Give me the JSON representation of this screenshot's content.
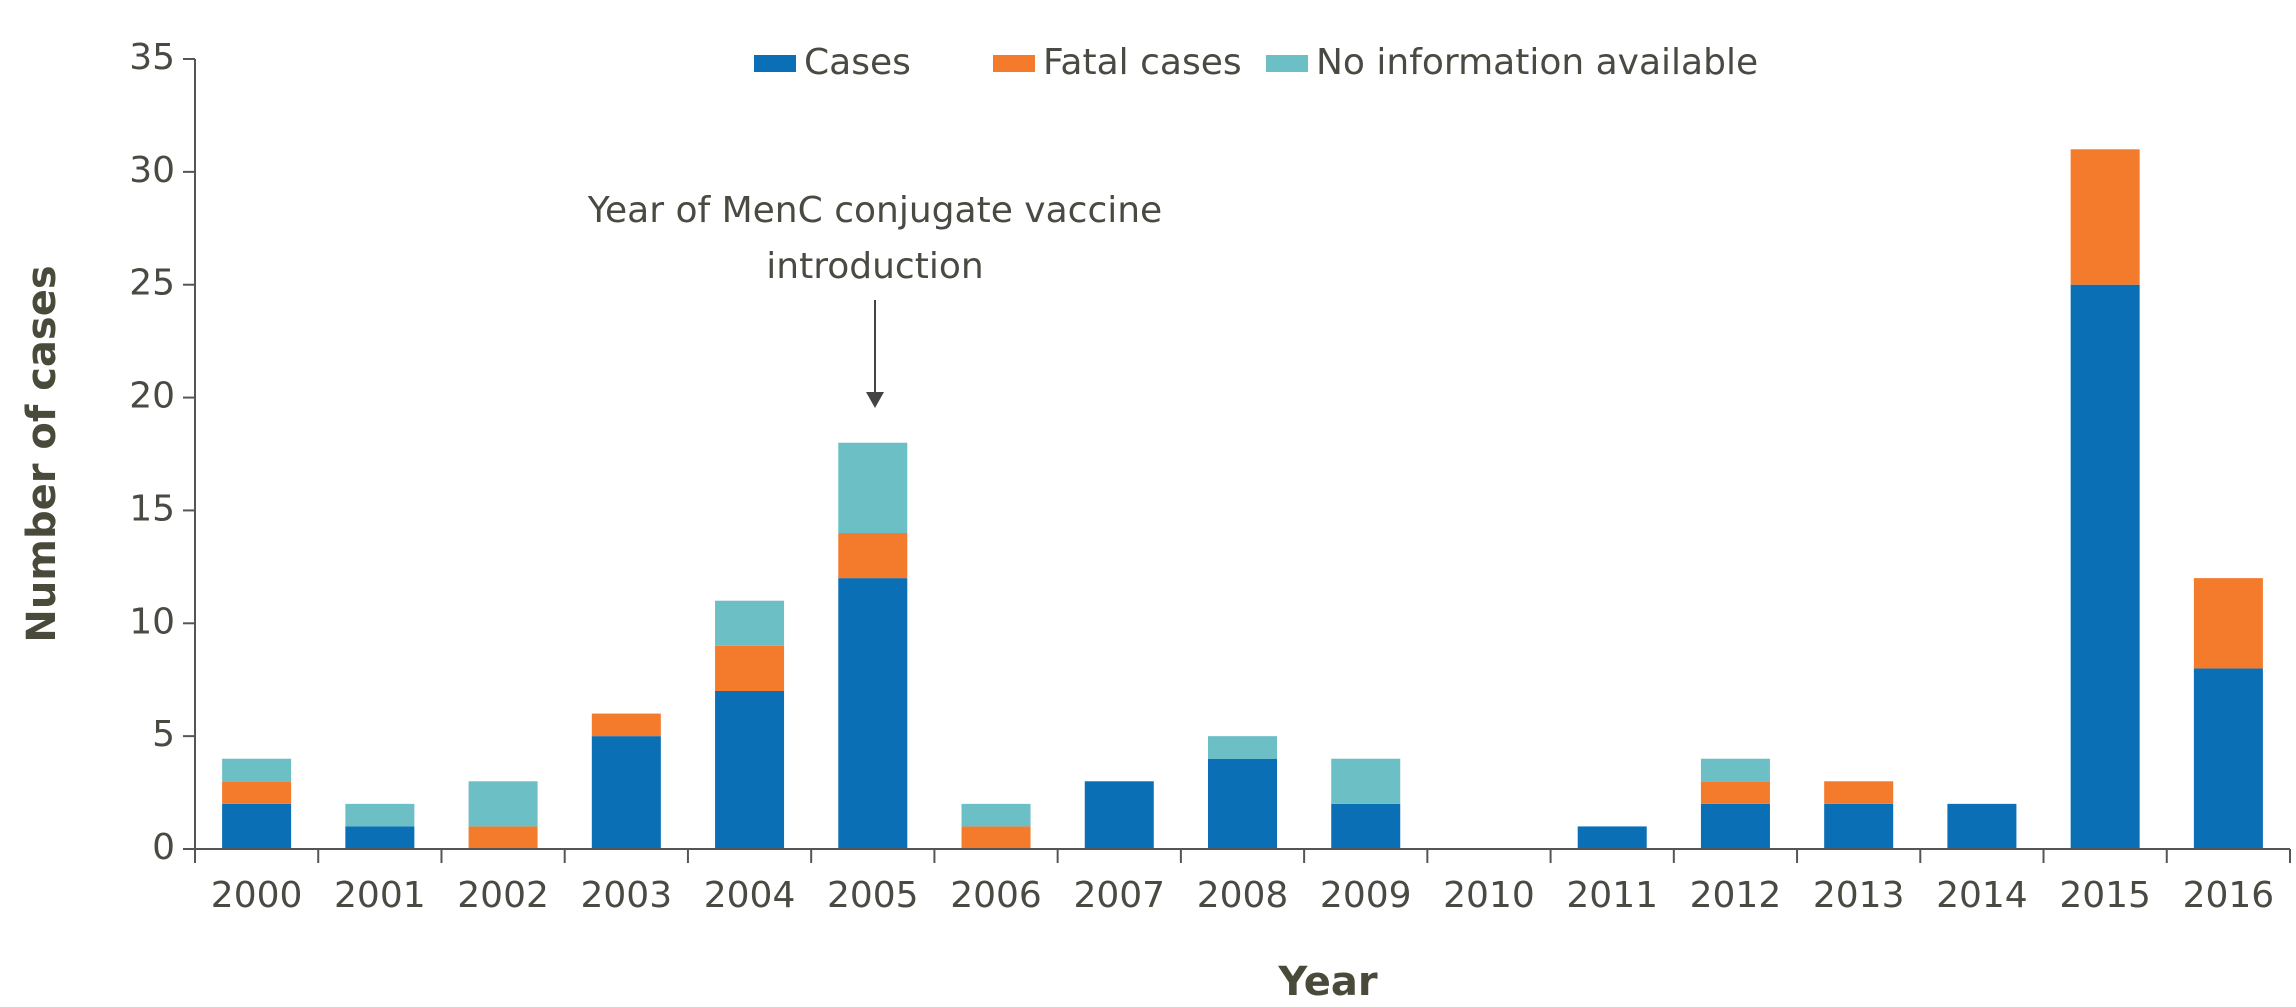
{
  "chart_data": {
    "type": "stacked_bar",
    "x_label": "Year",
    "y_label": "Number of cases",
    "annotation": [
      "Year of MenC conjugate vaccine",
      "introduction"
    ],
    "categories": [
      "2000",
      "2001",
      "2002",
      "2003",
      "2004",
      "2005",
      "2006",
      "2007",
      "2008",
      "2009",
      "2010",
      "2011",
      "2012",
      "2013",
      "2014",
      "2015",
      "2016"
    ],
    "series": [
      {
        "name": "Cases",
        "color": "#0a6fb4",
        "values": [
          2,
          1,
          0,
          5,
          7,
          12,
          0,
          3,
          4,
          2,
          0,
          1,
          2,
          2,
          2,
          25,
          8
        ]
      },
      {
        "name": "Fatal cases",
        "color": "#f47a2c",
        "values": [
          1,
          0,
          1,
          1,
          2,
          2,
          1,
          0,
          0,
          0,
          0,
          0,
          1,
          1,
          0,
          6,
          4
        ]
      },
      {
        "name": "No information available",
        "color": "#6dbfc6",
        "values": [
          1,
          1,
          2,
          0,
          2,
          4,
          1,
          0,
          1,
          2,
          0,
          0,
          1,
          0,
          0,
          0,
          0
        ]
      }
    ],
    "ylim": [
      0,
      35
    ],
    "yticks": [
      0,
      5,
      10,
      15,
      20,
      25,
      30,
      35
    ],
    "grid": false,
    "legend": "top"
  }
}
